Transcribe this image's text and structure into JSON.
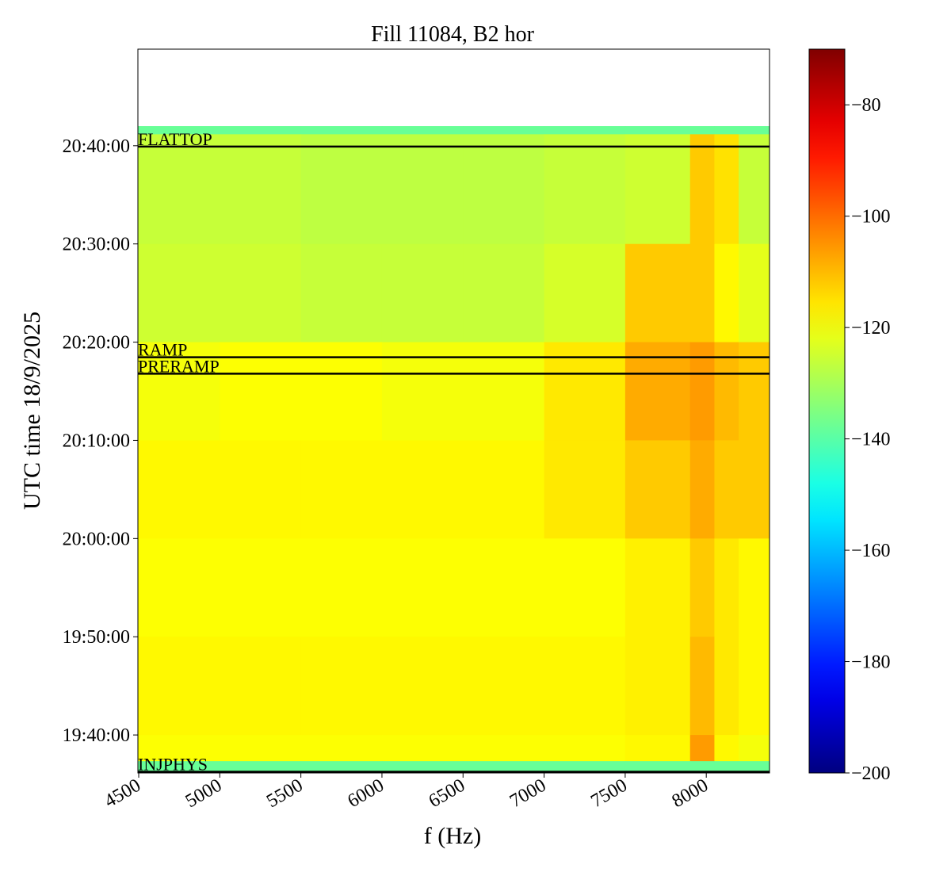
{
  "chart_data": {
    "type": "heatmap",
    "title": "Fill 11084, B2 hor",
    "xlabel": "f (Hz)",
    "ylabel": "UTC time 18/9/2025",
    "colormap": "jet",
    "x_edges": [
      4495,
      5000,
      5500,
      6000,
      6500,
      7000,
      7500,
      7900,
      8050,
      8200,
      8390
    ],
    "y_edges": [
      74520,
      74470,
      73800,
      73200,
      72600,
      72000,
      71400,
      70800,
      70640,
      70568
    ],
    "z": [
      [
        -138,
        -138,
        -138,
        -138,
        -138,
        -138,
        -138,
        -138,
        -138,
        -138
      ],
      [
        -126,
        -126,
        -127,
        -127,
        -127,
        -126,
        -125,
        -112,
        -115,
        -126
      ],
      [
        -125,
        -125,
        -126,
        -126,
        -126,
        -124,
        -112,
        -112,
        -118,
        -122
      ],
      [
        -120,
        -119,
        -119,
        -120,
        -120,
        -116,
        -108,
        -106,
        -110,
        -112
      ],
      [
        -118,
        -118,
        -118,
        -118,
        -118,
        -116,
        -112,
        -108,
        -112,
        -112
      ],
      [
        -119,
        -119,
        -119,
        -119,
        -119,
        -119,
        -117,
        -112,
        -116,
        -118
      ],
      [
        -118,
        -118,
        -118,
        -118,
        -118,
        -118,
        -117,
        -110,
        -116,
        -118
      ],
      [
        -119,
        -119,
        -119,
        -119,
        -119,
        -119,
        -118,
        -106,
        -118,
        -120
      ],
      [
        -138,
        -138,
        -138,
        -138,
        -138,
        -138,
        -138,
        -138,
        -138,
        -138
      ]
    ],
    "xlim": [
      4495,
      8390
    ],
    "ylim": [
      70568,
      74990
    ],
    "xticks": [
      4500,
      5000,
      5500,
      6000,
      6500,
      7000,
      7500,
      8000
    ],
    "yticks": [
      {
        "value": 70800,
        "label": "19:40:00"
      },
      {
        "value": 71400,
        "label": "19:50:00"
      },
      {
        "value": 72000,
        "label": "20:00:00"
      },
      {
        "value": 72600,
        "label": "20:10:00"
      },
      {
        "value": 73200,
        "label": "20:20:00"
      },
      {
        "value": 73800,
        "label": "20:30:00"
      },
      {
        "value": 74400,
        "label": "20:40:00"
      }
    ],
    "clim": [
      -200,
      -70
    ],
    "cticks": [
      {
        "value": -80,
        "label": "−80"
      },
      {
        "value": -100,
        "label": "−100"
      },
      {
        "value": -120,
        "label": "−120"
      },
      {
        "value": -140,
        "label": "−140"
      },
      {
        "value": -160,
        "label": "−160"
      },
      {
        "value": -180,
        "label": "−180"
      },
      {
        "value": -200,
        "label": "−200"
      }
    ],
    "annotation_color": "#000000",
    "annotations": [
      {
        "label": "FLATTOP",
        "y": 74395
      },
      {
        "label": "RAMP",
        "y": 73108
      },
      {
        "label": "PRERAMP",
        "y": 73007
      },
      {
        "label": "INJPHYS",
        "y": 70575
      }
    ]
  }
}
